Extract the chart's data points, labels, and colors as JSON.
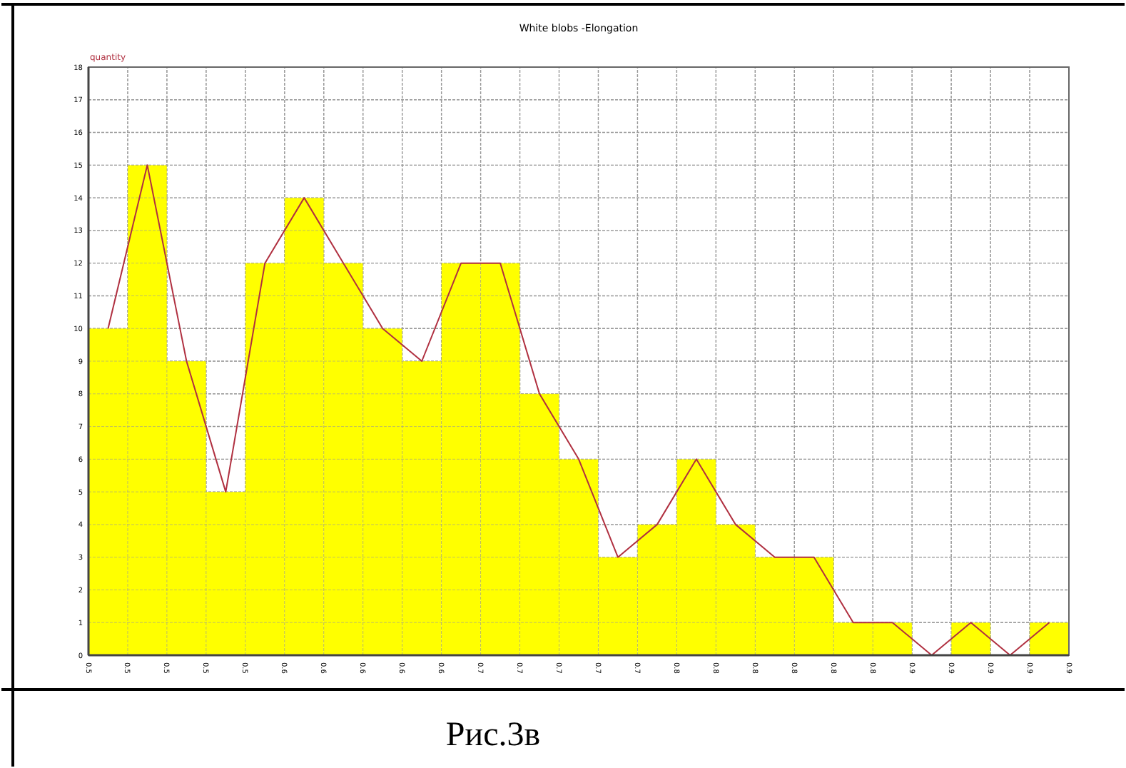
{
  "chart_data": {
    "type": "histogram",
    "title": "White blobs -Elongation",
    "ylabel": "quantity",
    "annotations": [
      "Рис.3в"
    ],
    "bins": [
      0.467,
      0.486,
      0.505,
      0.524,
      0.543,
      0.562,
      0.581,
      0.6,
      0.619,
      0.638,
      0.657,
      0.676,
      0.695,
      0.714,
      0.733,
      0.752,
      0.771,
      0.79,
      0.809,
      0.828,
      0.847,
      0.866,
      0.885,
      0.904,
      0.923,
      0.942
    ],
    "series": [
      {
        "color": "#ffff00",
        "values": [
          10,
          15,
          9,
          5,
          12,
          14,
          12,
          10,
          9,
          12,
          12,
          8,
          6,
          3,
          4,
          6,
          4,
          3,
          3,
          1,
          1,
          0,
          1,
          0,
          1
        ]
      },
      {
        "type": "line",
        "color": "#b03040",
        "x": [
          0.4765,
          0.4955,
          0.5145,
          0.5335,
          0.5525,
          0.5715,
          0.5905,
          0.6095,
          0.6285,
          0.6475,
          0.6665,
          0.6855,
          0.7045,
          0.7235,
          0.7425,
          0.7615,
          0.7805,
          0.7995,
          0.8185,
          0.8375,
          0.8565,
          0.8755,
          0.8945,
          0.9135,
          0.9325
        ],
        "values": [
          10,
          15,
          9,
          5,
          12,
          14,
          12,
          10,
          9,
          12,
          12,
          8,
          6,
          3,
          4,
          6,
          4,
          3,
          3,
          1,
          1,
          0,
          1,
          0,
          1
        ]
      }
    ],
    "xlim": [
      0.467,
      0.942
    ],
    "xticks": [
      {
        "value": 0.467,
        "label": "0.5"
      },
      {
        "value": 0.486,
        "label": "0.5"
      },
      {
        "value": 0.505,
        "label": "0.5"
      },
      {
        "value": 0.524,
        "label": "0.5"
      },
      {
        "value": 0.543,
        "label": "0.5"
      },
      {
        "value": 0.562,
        "label": "0.6"
      },
      {
        "value": 0.581,
        "label": "0.6"
      },
      {
        "value": 0.6,
        "label": "0.6"
      },
      {
        "value": 0.619,
        "label": "0.6"
      },
      {
        "value": 0.638,
        "label": "0.6"
      },
      {
        "value": 0.657,
        "label": "0.7"
      },
      {
        "value": 0.676,
        "label": "0.7"
      },
      {
        "value": 0.695,
        "label": "0.7"
      },
      {
        "value": 0.714,
        "label": "0.7"
      },
      {
        "value": 0.733,
        "label": "0.7"
      },
      {
        "value": 0.752,
        "label": "0.8"
      },
      {
        "value": 0.771,
        "label": "0.8"
      },
      {
        "value": 0.79,
        "label": "0.8"
      },
      {
        "value": 0.809,
        "label": "0.8"
      },
      {
        "value": 0.828,
        "label": "0.8"
      },
      {
        "value": 0.847,
        "label": "0.8"
      },
      {
        "value": 0.866,
        "label": "0.9"
      },
      {
        "value": 0.885,
        "label": "0.9"
      },
      {
        "value": 0.904,
        "label": "0.9"
      },
      {
        "value": 0.923,
        "label": "0.9"
      },
      {
        "value": 0.942,
        "label": "0.9"
      }
    ],
    "ylim": [
      0,
      18
    ],
    "yticks": [
      0,
      1,
      2,
      3,
      4,
      5,
      6,
      7,
      8,
      9,
      10,
      11,
      12,
      13,
      14,
      15,
      16,
      17,
      18
    ],
    "grid": true,
    "marker": "none",
    "line_style": "solid"
  }
}
